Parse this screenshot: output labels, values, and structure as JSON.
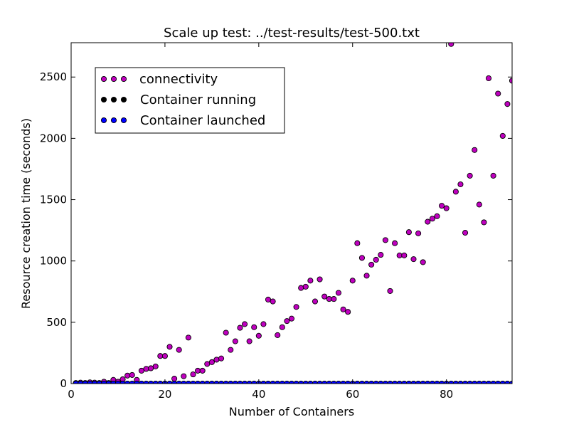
{
  "chart_data": {
    "type": "scatter",
    "title": "Scale up test: ../test-results/test-500.txt",
    "xlabel": "Number of Containers",
    "ylabel": "Resource creation time (seconds)",
    "xlim": [
      0,
      94
    ],
    "ylim": [
      0,
      2780
    ],
    "xticks": [
      0,
      20,
      40,
      60,
      80
    ],
    "yticks": [
      0,
      500,
      1000,
      1500,
      2000,
      2500
    ],
    "grid": false,
    "legend_position": "top-left",
    "series": [
      {
        "name": "connectivity",
        "color": "#bf00bf",
        "x": [
          1,
          2,
          3,
          4,
          5,
          6,
          7,
          8,
          9,
          10,
          11,
          12,
          13,
          14,
          15,
          16,
          17,
          18,
          19,
          20,
          21,
          22,
          23,
          24,
          25,
          26,
          27,
          28,
          29,
          30,
          31,
          32,
          33,
          34,
          35,
          36,
          37,
          38,
          39,
          40,
          41,
          42,
          43,
          44,
          45,
          46,
          47,
          48,
          49,
          50,
          51,
          52,
          53,
          54,
          55,
          56,
          57,
          58,
          59,
          60,
          61,
          62,
          63,
          64,
          65,
          66,
          67,
          68,
          69,
          70,
          71,
          72,
          73,
          74,
          75,
          76,
          77,
          78,
          79,
          80,
          81,
          82,
          83,
          84,
          85,
          86,
          87,
          88,
          89,
          90,
          91,
          92,
          93,
          94
        ],
        "y": [
          5,
          8,
          5,
          10,
          8,
          5,
          15,
          5,
          30,
          15,
          35,
          65,
          70,
          30,
          105,
          120,
          125,
          140,
          225,
          225,
          300,
          40,
          275,
          60,
          375,
          75,
          105,
          105,
          160,
          175,
          195,
          205,
          415,
          275,
          345,
          455,
          485,
          345,
          460,
          390,
          485,
          685,
          670,
          395,
          460,
          510,
          530,
          625,
          780,
          790,
          840,
          670,
          850,
          710,
          690,
          690,
          740,
          605,
          585,
          840,
          1145,
          1025,
          880,
          970,
          1010,
          1050,
          1170,
          755,
          1145,
          1045,
          1045,
          1235,
          1015,
          1225,
          990,
          1320,
          1345,
          1365,
          1450,
          1430,
          2770,
          1565,
          1625,
          1230,
          1695,
          1905,
          1460,
          1315,
          2490,
          1695,
          2365,
          2020,
          2280,
          2470
        ]
      },
      {
        "name": "Container running",
        "color": "#000000",
        "x": [
          1,
          2,
          3,
          4,
          5,
          6,
          7,
          8,
          9,
          10,
          11,
          12,
          13,
          14,
          15,
          16,
          17,
          18,
          19,
          20,
          21,
          22,
          23,
          24,
          25,
          26,
          27,
          28,
          29,
          30,
          31,
          32,
          33,
          34,
          35,
          36,
          37,
          38,
          39,
          40,
          41,
          42,
          43,
          44,
          45,
          46,
          47,
          48,
          49,
          50,
          51,
          52,
          53,
          54,
          55,
          56,
          57,
          58,
          59,
          60,
          61,
          62,
          63,
          64,
          65,
          66,
          67,
          68,
          69,
          70,
          71,
          72,
          73,
          74,
          75,
          76,
          77,
          78,
          79,
          80,
          81,
          82,
          83,
          84,
          85,
          86,
          87,
          88,
          89,
          90,
          91,
          92,
          93,
          94
        ],
        "y": [
          0,
          0,
          0,
          0,
          0,
          0,
          0,
          0,
          0,
          0,
          0,
          0,
          0,
          0,
          0,
          0,
          0,
          0,
          0,
          0,
          0,
          0,
          0,
          0,
          0,
          0,
          0,
          0,
          0,
          0,
          0,
          0,
          0,
          0,
          0,
          0,
          0,
          0,
          0,
          0,
          0,
          0,
          0,
          0,
          0,
          0,
          0,
          0,
          0,
          0,
          0,
          0,
          0,
          0,
          0,
          0,
          0,
          0,
          0,
          0,
          0,
          0,
          0,
          0,
          0,
          0,
          0,
          0,
          0,
          0,
          0,
          0,
          0,
          0,
          0,
          0,
          0,
          0,
          0,
          0,
          0,
          0,
          0,
          0,
          0,
          0,
          0,
          0,
          0,
          0,
          0,
          0,
          0,
          0
        ]
      },
      {
        "name": "Container launched",
        "color": "#0000ff",
        "x": [
          1,
          2,
          3,
          4,
          5,
          6,
          7,
          8,
          9,
          10,
          11,
          12,
          13,
          14,
          15,
          16,
          17,
          18,
          19,
          20,
          21,
          22,
          23,
          24,
          25,
          26,
          27,
          28,
          29,
          30,
          31,
          32,
          33,
          34,
          35,
          36,
          37,
          38,
          39,
          40,
          41,
          42,
          43,
          44,
          45,
          46,
          47,
          48,
          49,
          50,
          51,
          52,
          53,
          54,
          55,
          56,
          57,
          58,
          59,
          60,
          61,
          62,
          63,
          64,
          65,
          66,
          67,
          68,
          69,
          70,
          71,
          72,
          73,
          74,
          75,
          76,
          77,
          78,
          79,
          80,
          81,
          82,
          83,
          84,
          85,
          86,
          87,
          88,
          89,
          90,
          91,
          92,
          93,
          94
        ],
        "y": [
          0,
          0,
          0,
          0,
          0,
          0,
          0,
          0,
          0,
          0,
          0,
          0,
          0,
          0,
          0,
          0,
          0,
          0,
          0,
          0,
          0,
          0,
          0,
          0,
          0,
          0,
          0,
          0,
          0,
          0,
          0,
          0,
          0,
          0,
          0,
          0,
          0,
          0,
          0,
          0,
          0,
          0,
          0,
          0,
          0,
          0,
          0,
          0,
          0,
          0,
          0,
          0,
          0,
          0,
          0,
          0,
          0,
          0,
          0,
          0,
          0,
          0,
          0,
          0,
          0,
          0,
          0,
          0,
          0,
          0,
          0,
          0,
          0,
          0,
          0,
          0,
          0,
          0,
          0,
          0,
          0,
          0,
          0,
          0,
          0,
          0,
          0,
          0,
          0,
          0,
          0,
          0,
          0,
          0
        ]
      }
    ]
  }
}
